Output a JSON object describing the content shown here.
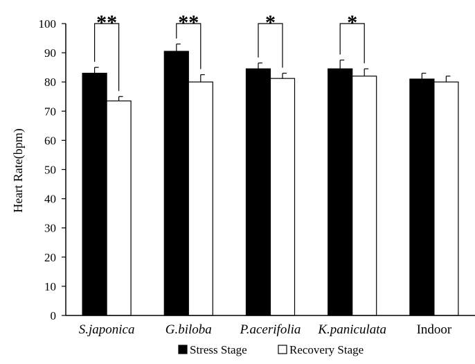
{
  "chart_data": {
    "type": "bar",
    "title": "",
    "xlabel": "",
    "ylabel": "Heart Rate(bpm)",
    "ylim": [
      0,
      100
    ],
    "yticks": [
      0,
      10,
      20,
      30,
      40,
      50,
      60,
      70,
      80,
      90,
      100
    ],
    "grid": false,
    "legend_position": "bottom",
    "categories": [
      {
        "label": "S.japonica",
        "italic": true
      },
      {
        "label": "G.biloba",
        "italic": true
      },
      {
        "label": "P.acerifolia",
        "italic": true
      },
      {
        "label": "K.paniculata",
        "italic": true
      },
      {
        "label": "Indoor",
        "italic": false
      }
    ],
    "series": [
      {
        "name": "Stress Stage",
        "color": "#000000",
        "values": [
          83.0,
          90.5,
          84.5,
          84.5,
          81.0
        ],
        "errors": [
          2.0,
          2.5,
          2.0,
          3.0,
          2.0
        ]
      },
      {
        "name": "Recovery Stage",
        "color": "#ffffff",
        "values": [
          73.5,
          80.0,
          81.2,
          82.0,
          80.0
        ],
        "errors": [
          1.5,
          2.5,
          1.8,
          2.5,
          2.0
        ]
      }
    ],
    "significance": [
      "**",
      "**",
      "*",
      "*",
      ""
    ]
  }
}
